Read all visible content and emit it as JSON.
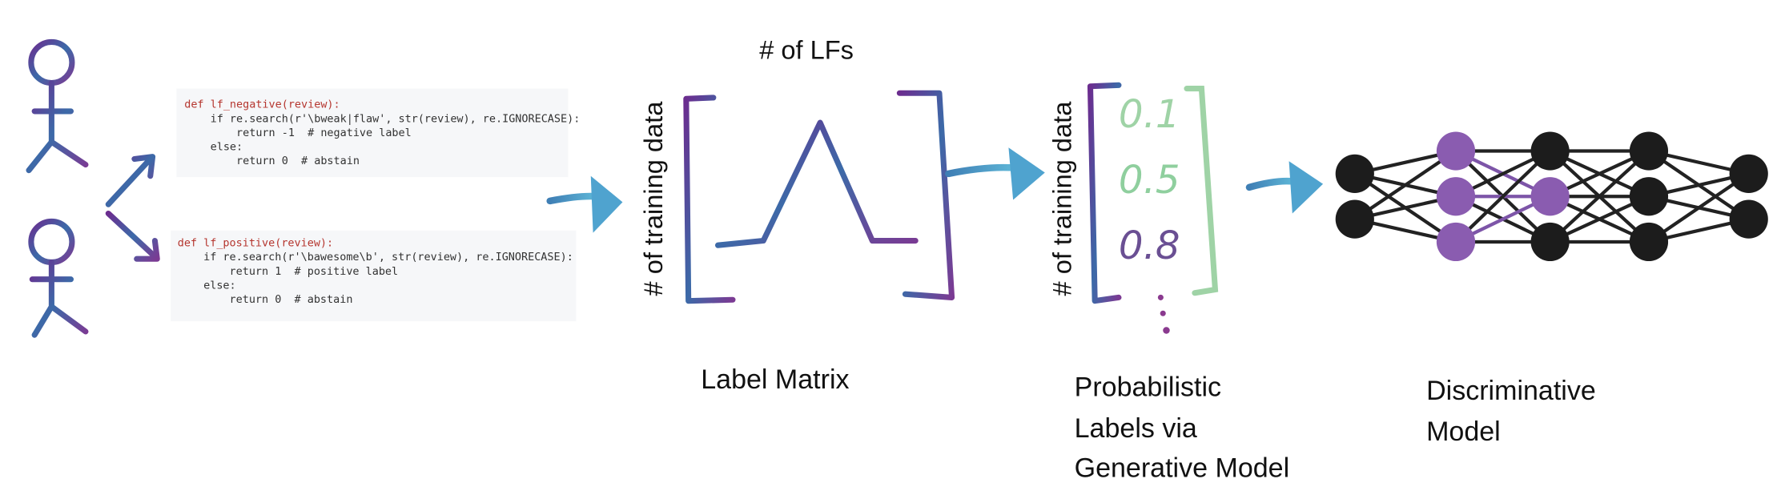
{
  "code_blocks": [
    {
      "lines": [
        "def lf_negative(review):",
        "    if re.search(r'\\bweak|flaw', str(review), re.IGNORECASE):",
        "        return -1  # negative label",
        "    else:",
        "        return 0  # abstain"
      ]
    },
    {
      "lines": [
        "def lf_positive(review):",
        "    if re.search(r'\\bawesome\\b', str(review), re.IGNORECASE):",
        "        return 1  # positive label",
        "    else:",
        "        return 0  # abstain"
      ]
    }
  ],
  "label_matrix": {
    "column_axis": "# of LFs",
    "row_axis": "# of training data",
    "caption": "Label Matrix"
  },
  "probabilistic_labels": {
    "row_axis": "# of training data",
    "values": [
      "0.1",
      "0.5",
      "0.8"
    ],
    "caption": [
      "Probabilistic",
      "Labels via",
      "Generative Model"
    ]
  },
  "discriminative_model": {
    "caption": [
      "Discriminative",
      "Model"
    ]
  }
}
